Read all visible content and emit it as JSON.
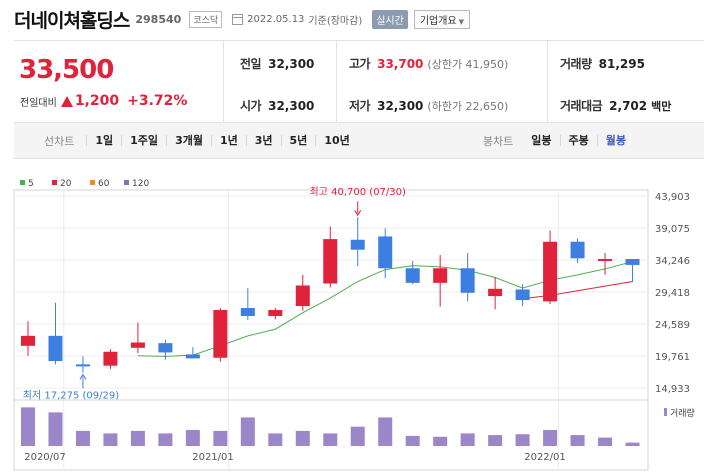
{
  "header": {
    "name": "더네이쳐홀딩스",
    "code": "298540",
    "market": "코스닥",
    "date": "2022.05.13",
    "basis": "기준(장마감)",
    "realtime": "실시간",
    "corp_btn": "기업개요"
  },
  "quote": {
    "now": "33,500",
    "change_label": "전일대비",
    "change_amt": "1,200",
    "change_pct": "+3.72%",
    "prev_k": "전일",
    "prev_v": "32,300",
    "open_k": "시가",
    "open_v": "32,300",
    "high_k": "고가",
    "high_v": "33,700",
    "upper_limit": "(상한가 41,950)",
    "low_k": "저가",
    "low_v": "32,300",
    "lower_limit": "(하한가 22,650)",
    "volume_k": "거래량",
    "volume_v": "81,295",
    "amount_k": "거래대금",
    "amount_v": "2,702",
    "amount_unit": "백만"
  },
  "periods": {
    "label": "선차트",
    "items": [
      "1일",
      "1주일",
      "3개월",
      "1년",
      "3년",
      "5년",
      "10년"
    ],
    "candle_label": "봉차트",
    "candle_items": [
      "일봉",
      "주봉",
      "월봉"
    ],
    "candle_selected": "월봉"
  },
  "colors": {
    "up": "#e0223a",
    "down": "#3d7fe0",
    "ma5": "#4caf50",
    "ma20": "#e0223a",
    "ma60": "#f08a24",
    "ma120": "#8a6cc4",
    "volume": "#9b86c9"
  },
  "chart_data": {
    "type": "candlestick",
    "legend": [
      "5",
      "20",
      "60",
      "120"
    ],
    "y_ticks": [
      "43,903",
      "39,075",
      "34,246",
      "29,418",
      "24,589",
      "19,761",
      "14,933"
    ],
    "ylim": [
      14933,
      43903
    ],
    "x_ticks": [
      "2020/07",
      "2021/01",
      "2022/01"
    ],
    "volume_label": "거래량",
    "max_annotation": "최고 40,700 (07/30)",
    "min_annotation": "최저 17,275 (09/29)",
    "candles": [
      {
        "o": 21300,
        "h": 25000,
        "l": 19800,
        "c": 22800
      },
      {
        "o": 22800,
        "h": 27800,
        "l": 18500,
        "c": 19000
      },
      {
        "o": 18500,
        "h": 19700,
        "l": 17275,
        "c": 18200
      },
      {
        "o": 18300,
        "h": 20800,
        "l": 17800,
        "c": 20400
      },
      {
        "o": 21000,
        "h": 24800,
        "l": 20200,
        "c": 21800
      },
      {
        "o": 21700,
        "h": 22200,
        "l": 19200,
        "c": 20300
      },
      {
        "o": 20000,
        "h": 21100,
        "l": 19400,
        "c": 19400
      },
      {
        "o": 19500,
        "h": 27000,
        "l": 18900,
        "c": 26700
      },
      {
        "o": 27000,
        "h": 30000,
        "l": 25200,
        "c": 25800
      },
      {
        "o": 25800,
        "h": 27000,
        "l": 25300,
        "c": 26700
      },
      {
        "o": 27300,
        "h": 32000,
        "l": 26600,
        "c": 30400
      },
      {
        "o": 30700,
        "h": 39300,
        "l": 30100,
        "c": 37400
      },
      {
        "o": 37300,
        "h": 40700,
        "l": 33300,
        "c": 35800
      },
      {
        "o": 37800,
        "h": 39000,
        "l": 31500,
        "c": 33000
      },
      {
        "o": 33000,
        "h": 34100,
        "l": 30600,
        "c": 30800
      },
      {
        "o": 30800,
        "h": 35000,
        "l": 27200,
        "c": 33000
      },
      {
        "o": 33000,
        "h": 35300,
        "l": 28000,
        "c": 29300
      },
      {
        "o": 28800,
        "h": 31700,
        "l": 26800,
        "c": 29900
      },
      {
        "o": 29800,
        "h": 30600,
        "l": 27300,
        "c": 28200
      },
      {
        "o": 28000,
        "h": 38700,
        "l": 27600,
        "c": 37000
      },
      {
        "o": 37000,
        "h": 37500,
        "l": 33800,
        "c": 34500
      },
      {
        "o": 34200,
        "h": 35300,
        "l": 32000,
        "c": 34400
      },
      {
        "o": 34400,
        "h": 34400,
        "l": 30900,
        "c": 33500
      }
    ],
    "ma5": [
      null,
      null,
      null,
      null,
      19800,
      19700,
      19900,
      21300,
      22800,
      23800,
      26300,
      28500,
      31000,
      32800,
      33400,
      33200,
      32700,
      31600,
      30000,
      31200,
      32000,
      32900,
      34000
    ],
    "ma20": [
      null,
      null,
      null,
      null,
      null,
      null,
      null,
      null,
      null,
      null,
      null,
      null,
      null,
      null,
      null,
      null,
      null,
      null,
      28400,
      28900,
      29600,
      30300,
      31000
    ],
    "volume_rel": [
      0.92,
      0.8,
      0.36,
      0.3,
      0.36,
      0.3,
      0.38,
      0.36,
      0.68,
      0.3,
      0.36,
      0.3,
      0.46,
      0.68,
      0.24,
      0.22,
      0.3,
      0.26,
      0.28,
      0.38,
      0.26,
      0.2,
      0.08
    ]
  }
}
